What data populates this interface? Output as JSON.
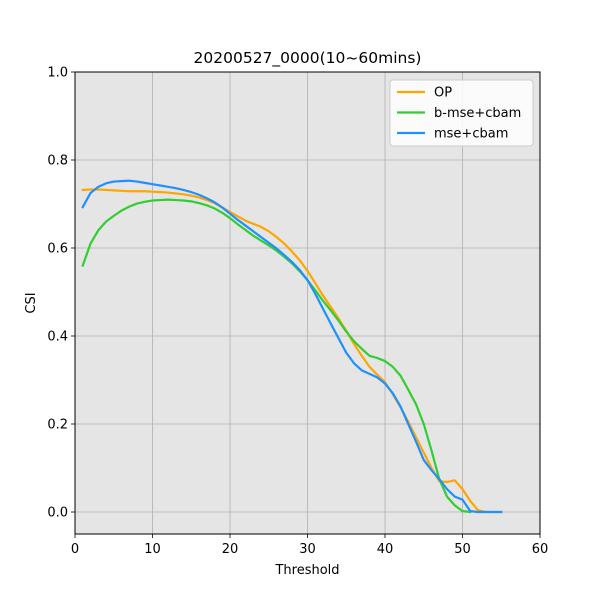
{
  "chart_data": {
    "type": "line",
    "title": "20200527_0000(10~60mins)",
    "xlabel": "Threshold",
    "ylabel": "CSI",
    "xlim": [
      0,
      60
    ],
    "ylim": [
      -0.05,
      1.0
    ],
    "xticks": [
      0,
      10,
      20,
      30,
      40,
      50,
      60
    ],
    "yticks": [
      0.0,
      0.2,
      0.4,
      0.6,
      0.8,
      1.0
    ],
    "xtick_labels": [
      "0",
      "10",
      "20",
      "30",
      "40",
      "50",
      "60"
    ],
    "ytick_labels": [
      "0.0",
      "0.2",
      "0.4",
      "0.6",
      "0.8",
      "1.0"
    ],
    "grid": true,
    "background": "#e5e5e5",
    "legend_position": "top-right",
    "series": [
      {
        "name": "OP",
        "color": "#ffa500",
        "x": [
          1,
          2,
          3,
          4,
          5,
          6,
          7,
          8,
          9,
          10,
          11,
          12,
          13,
          14,
          15,
          16,
          17,
          18,
          19,
          20,
          21,
          22,
          23,
          24,
          25,
          26,
          27,
          28,
          29,
          30,
          31,
          32,
          33,
          34,
          35,
          36,
          37,
          38,
          39,
          40,
          41,
          42,
          43,
          44,
          45,
          46,
          47,
          48,
          49,
          50,
          51,
          52,
          53,
          54,
          55
        ],
        "y": [
          0.732,
          0.733,
          0.733,
          0.732,
          0.731,
          0.73,
          0.729,
          0.729,
          0.729,
          0.728,
          0.727,
          0.726,
          0.724,
          0.722,
          0.719,
          0.715,
          0.709,
          0.702,
          0.692,
          0.682,
          0.672,
          0.662,
          0.655,
          0.648,
          0.638,
          0.625,
          0.61,
          0.592,
          0.572,
          0.548,
          0.52,
          0.492,
          0.466,
          0.44,
          0.412,
          0.382,
          0.355,
          0.33,
          0.312,
          0.295,
          0.268,
          0.238,
          0.205,
          0.17,
          0.135,
          0.1,
          0.07,
          0.068,
          0.072,
          0.052,
          0.025,
          0.004,
          0.0,
          0.0,
          0.0
        ]
      },
      {
        "name": "b-mse+cbam",
        "color": "#32cd32",
        "x": [
          1,
          2,
          3,
          4,
          5,
          6,
          7,
          8,
          9,
          10,
          11,
          12,
          13,
          14,
          15,
          16,
          17,
          18,
          19,
          20,
          21,
          22,
          23,
          24,
          25,
          26,
          27,
          28,
          29,
          30,
          31,
          32,
          33,
          34,
          35,
          36,
          37,
          38,
          39,
          40,
          41,
          42,
          43,
          44,
          45,
          46,
          47,
          48,
          49,
          50,
          51
        ],
        "y": [
          0.56,
          0.61,
          0.64,
          0.66,
          0.673,
          0.685,
          0.694,
          0.701,
          0.705,
          0.708,
          0.709,
          0.71,
          0.709,
          0.708,
          0.706,
          0.702,
          0.697,
          0.69,
          0.68,
          0.668,
          0.654,
          0.641,
          0.628,
          0.617,
          0.606,
          0.594,
          0.58,
          0.565,
          0.547,
          0.527,
          0.504,
          0.48,
          0.458,
          0.435,
          0.41,
          0.388,
          0.371,
          0.355,
          0.35,
          0.343,
          0.33,
          0.31,
          0.278,
          0.245,
          0.2,
          0.14,
          0.075,
          0.035,
          0.015,
          0.002,
          0.0
        ]
      },
      {
        "name": "mse+cbam",
        "color": "#1e90ff",
        "x": [
          1,
          2,
          3,
          4,
          5,
          6,
          7,
          8,
          9,
          10,
          11,
          12,
          13,
          14,
          15,
          16,
          17,
          18,
          19,
          20,
          21,
          22,
          23,
          24,
          25,
          26,
          27,
          28,
          29,
          30,
          31,
          32,
          33,
          34,
          35,
          36,
          37,
          38,
          39,
          40,
          41,
          42,
          43,
          44,
          45,
          46,
          47,
          48,
          49,
          50,
          51,
          52,
          53,
          54,
          55
        ],
        "y": [
          0.693,
          0.725,
          0.739,
          0.747,
          0.751,
          0.752,
          0.753,
          0.751,
          0.748,
          0.745,
          0.742,
          0.739,
          0.736,
          0.732,
          0.727,
          0.721,
          0.713,
          0.704,
          0.692,
          0.678,
          0.664,
          0.651,
          0.638,
          0.625,
          0.612,
          0.599,
          0.584,
          0.568,
          0.55,
          0.527,
          0.496,
          0.462,
          0.428,
          0.395,
          0.362,
          0.338,
          0.322,
          0.314,
          0.306,
          0.292,
          0.27,
          0.24,
          0.2,
          0.16,
          0.118,
          0.095,
          0.075,
          0.052,
          0.035,
          0.028,
          0.002,
          0.0,
          0.0,
          0.0,
          0.0
        ]
      }
    ]
  }
}
